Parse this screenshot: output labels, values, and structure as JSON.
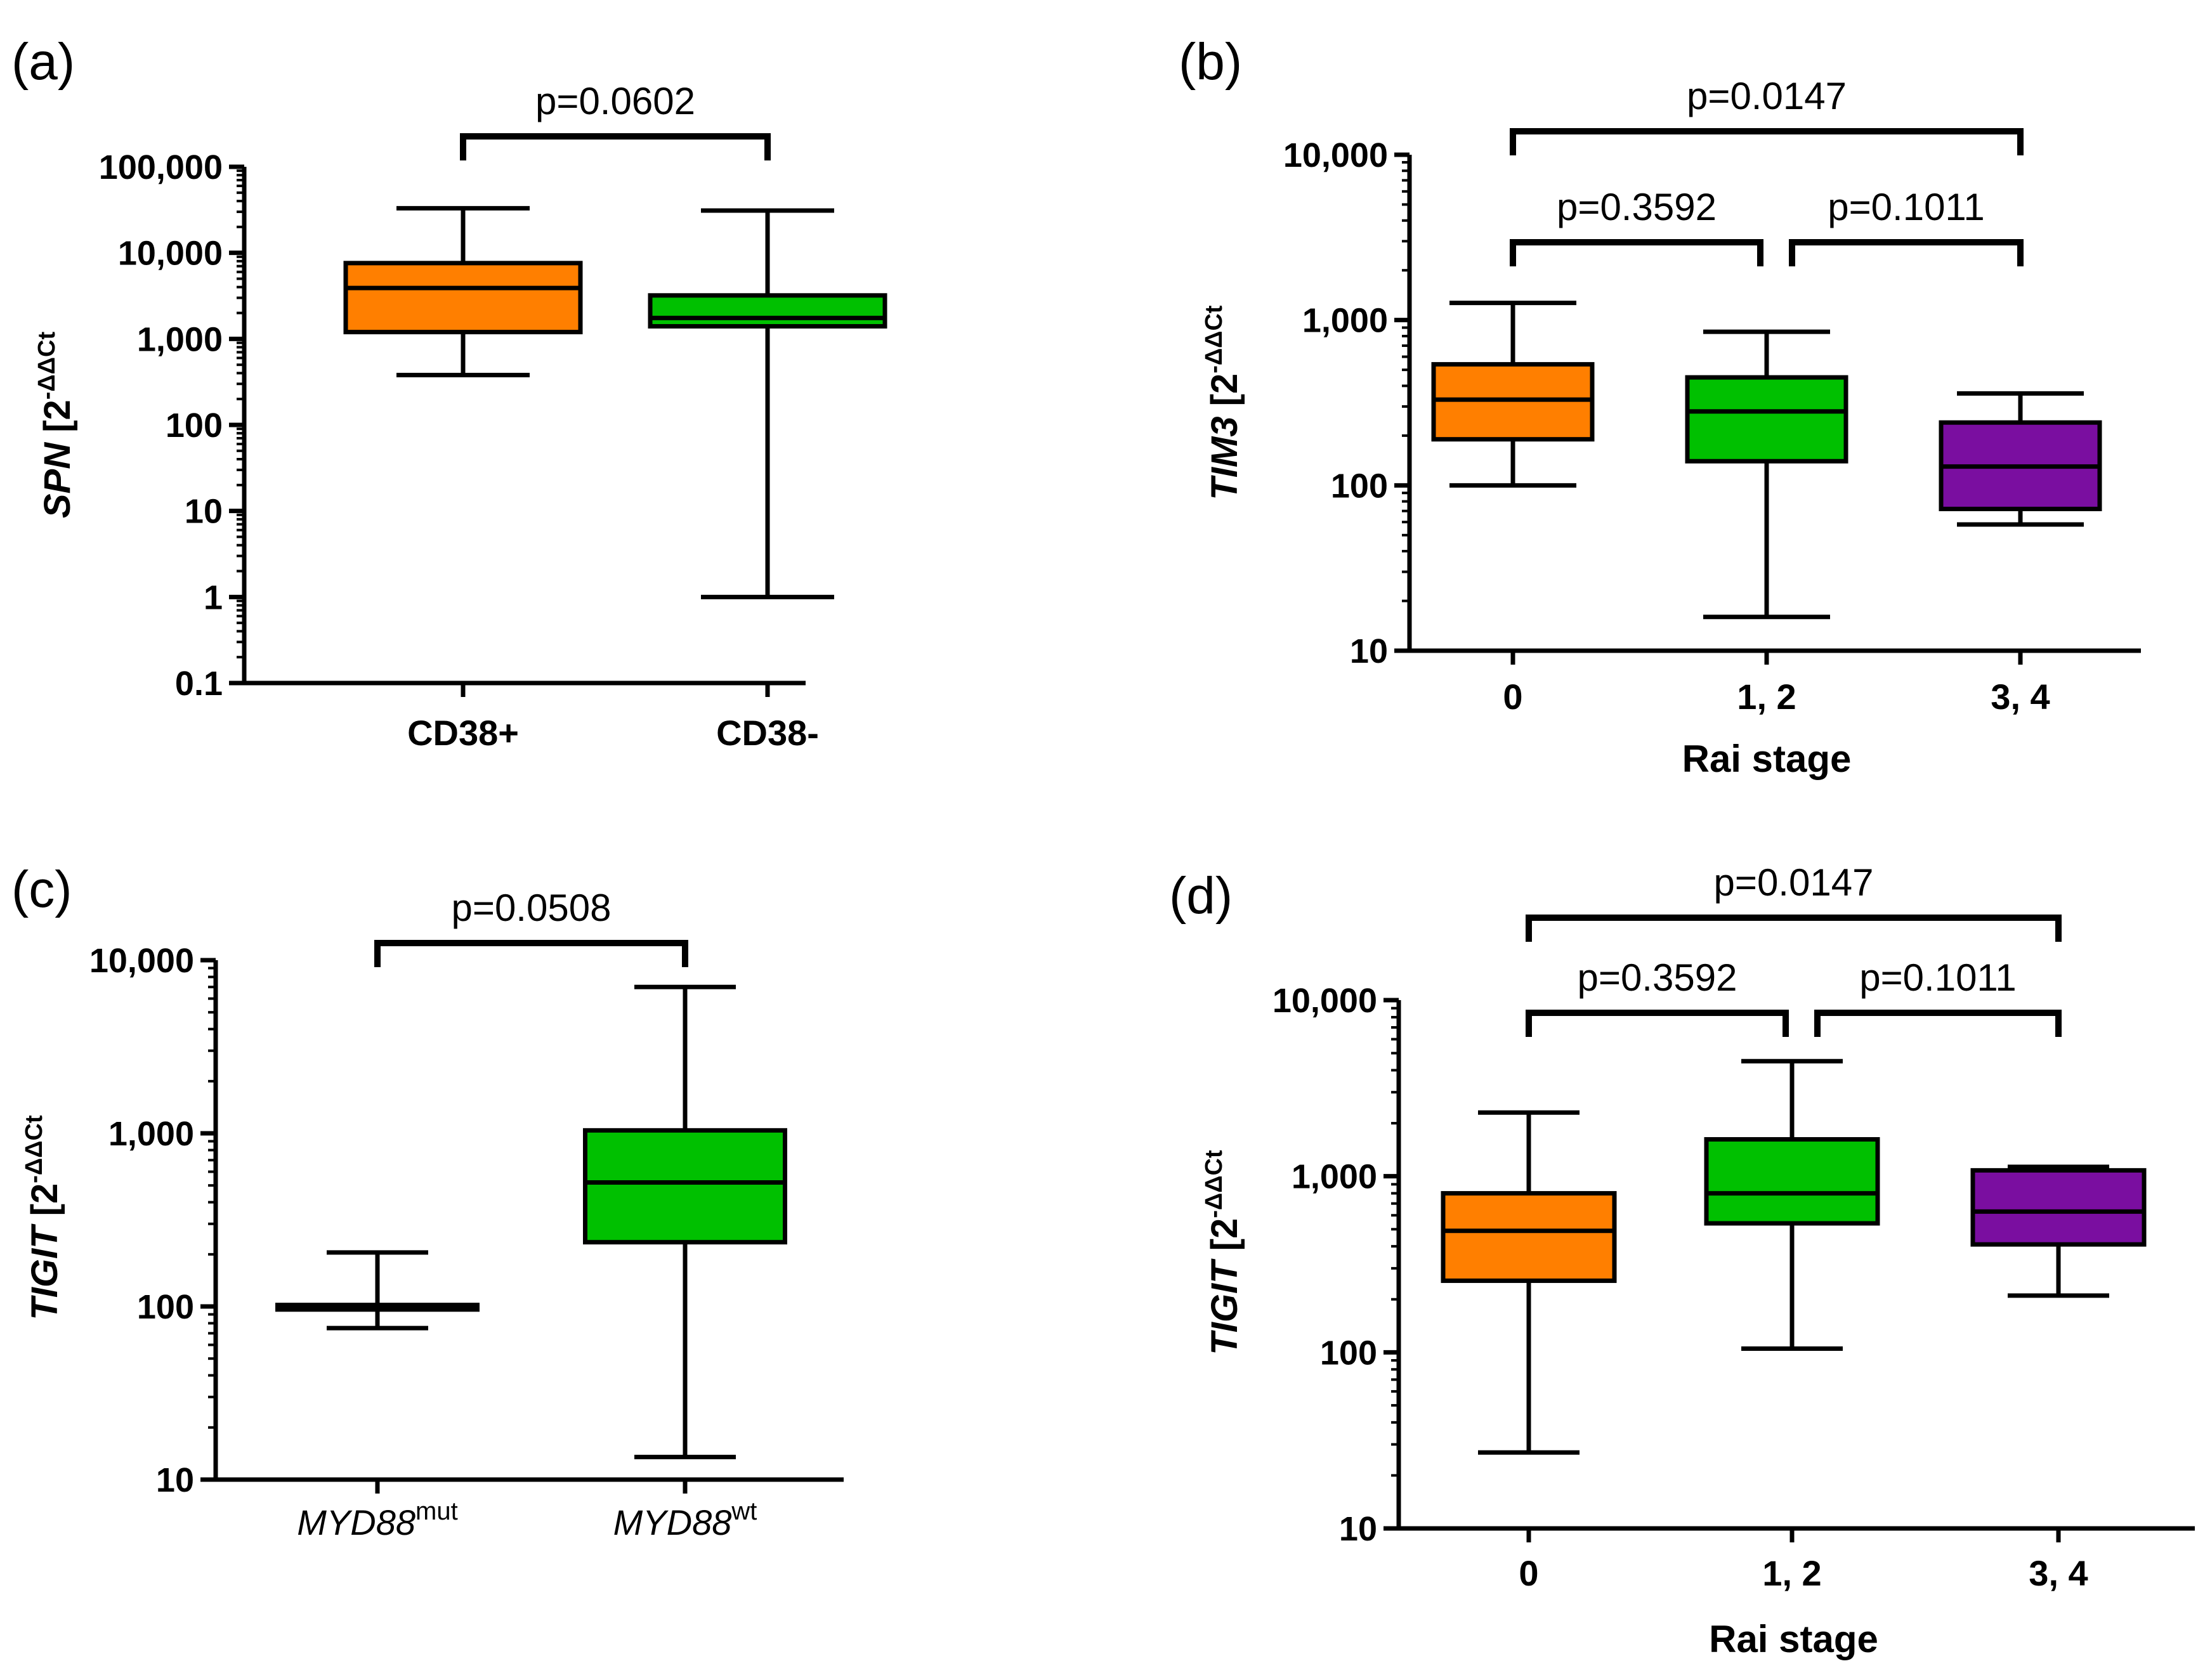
{
  "chart_data": [
    {
      "panel": "(a)",
      "type": "box",
      "scale": "log",
      "ylim": [
        0.1,
        100000
      ],
      "yticks": [
        0.1,
        1,
        10,
        100,
        1000,
        10000,
        100000
      ],
      "ytick_labels": [
        "0.1",
        "1",
        "10",
        "100",
        "1,000",
        "10,000",
        "100,000"
      ],
      "ylabel_gene": "SPN",
      "ylabel_unit_open": "[2",
      "ylabel_sup": "-ΔΔCt",
      "xlabel": "",
      "categories": [
        {
          "label": "CD38+",
          "sup": "",
          "italic": false,
          "color": "#ff7f00"
        },
        {
          "label": "CD38-",
          "sup": "",
          "italic": false,
          "color": "#00c000"
        }
      ],
      "boxes": [
        {
          "min": 380,
          "q1": 1200,
          "median": 3900,
          "q3": 7600,
          "max": 33000
        },
        {
          "min": 1,
          "q1": 1400,
          "median": 1750,
          "q3": 3200,
          "max": 31000
        }
      ],
      "comparisons": [
        {
          "from": 0,
          "to": 1,
          "level": 0,
          "label": "p=0.0602"
        }
      ]
    },
    {
      "panel": "(b)",
      "type": "box",
      "scale": "log",
      "ylim": [
        10,
        10000
      ],
      "yticks": [
        10,
        100,
        1000,
        10000
      ],
      "ytick_labels": [
        "10",
        "100",
        "1,000",
        "10,000"
      ],
      "ylabel_gene": "TIM3",
      "ylabel_unit_open": "[2",
      "ylabel_sup": "-ΔΔCt",
      "xlabel": "Rai stage",
      "categories": [
        {
          "label": "0",
          "sup": "",
          "italic": false,
          "color": "#ff7f00"
        },
        {
          "label": "1, 2",
          "sup": "",
          "italic": false,
          "color": "#00c000"
        },
        {
          "label": "3, 4",
          "sup": "",
          "italic": false,
          "color": "#7a0ea0"
        }
      ],
      "boxes": [
        {
          "min": 100,
          "q1": 190,
          "median": 330,
          "q3": 540,
          "max": 1270
        },
        {
          "min": 16,
          "q1": 140,
          "median": 280,
          "q3": 450,
          "max": 850
        },
        {
          "min": 58,
          "q1": 72,
          "median": 130,
          "q3": 240,
          "max": 360
        }
      ],
      "comparisons": [
        {
          "from": 0,
          "to": 1,
          "level": 0,
          "label": "p=0.3592"
        },
        {
          "from": 1,
          "to": 2,
          "level": 0,
          "label": "p=0.1011"
        },
        {
          "from": 0,
          "to": 2,
          "level": 1,
          "label": "p=0.0147"
        }
      ]
    },
    {
      "panel": "(c)",
      "type": "box",
      "scale": "log",
      "ylim": [
        10,
        10000
      ],
      "yticks": [
        10,
        100,
        1000,
        10000
      ],
      "ytick_labels": [
        "10",
        "100",
        "1,000",
        "10,000"
      ],
      "ylabel_gene": "TIGIT",
      "ylabel_unit_open": "[2",
      "ylabel_sup": "-ΔΔCt",
      "xlabel": "",
      "categories": [
        {
          "label": "MYD88",
          "sup": "mut",
          "italic": true,
          "color": "#ff7f00"
        },
        {
          "label": "MYD88",
          "sup": "wt",
          "italic": true,
          "color": "#00c000"
        }
      ],
      "boxes": [
        {
          "min": 75,
          "q1": 96,
          "median": 99,
          "q3": 102,
          "max": 205
        },
        {
          "min": 13.5,
          "q1": 235,
          "median": 520,
          "q3": 1040,
          "max": 7000
        }
      ],
      "comparisons": [
        {
          "from": 0,
          "to": 1,
          "level": 0,
          "label": "p=0.0508"
        }
      ]
    },
    {
      "panel": "(d)",
      "type": "box",
      "scale": "log",
      "ylim": [
        10,
        10000
      ],
      "yticks": [
        10,
        100,
        1000,
        10000
      ],
      "ytick_labels": [
        "10",
        "100",
        "1,000",
        "10,000"
      ],
      "ylabel_gene": "TIGIT",
      "ylabel_unit_open": "[2",
      "ylabel_sup": "-ΔΔCt",
      "xlabel": "Rai stage",
      "categories": [
        {
          "label": "0",
          "sup": "",
          "italic": false,
          "color": "#ff7f00"
        },
        {
          "label": "1, 2",
          "sup": "",
          "italic": false,
          "color": "#00c000"
        },
        {
          "label": "3, 4",
          "sup": "",
          "italic": false,
          "color": "#7a0ea0"
        }
      ],
      "boxes": [
        {
          "min": 27,
          "q1": 255,
          "median": 490,
          "q3": 800,
          "max": 2300
        },
        {
          "min": 105,
          "q1": 540,
          "median": 800,
          "q3": 1620,
          "max": 4500
        },
        {
          "min": 210,
          "q1": 410,
          "median": 630,
          "q3": 1080,
          "max": 1130
        }
      ],
      "comparisons": [
        {
          "from": 0,
          "to": 1,
          "level": 0,
          "label": "p=0.3592"
        },
        {
          "from": 1,
          "to": 2,
          "level": 0,
          "label": "p=0.1011"
        },
        {
          "from": 0,
          "to": 2,
          "level": 1,
          "label": "p=0.0147"
        }
      ]
    }
  ]
}
